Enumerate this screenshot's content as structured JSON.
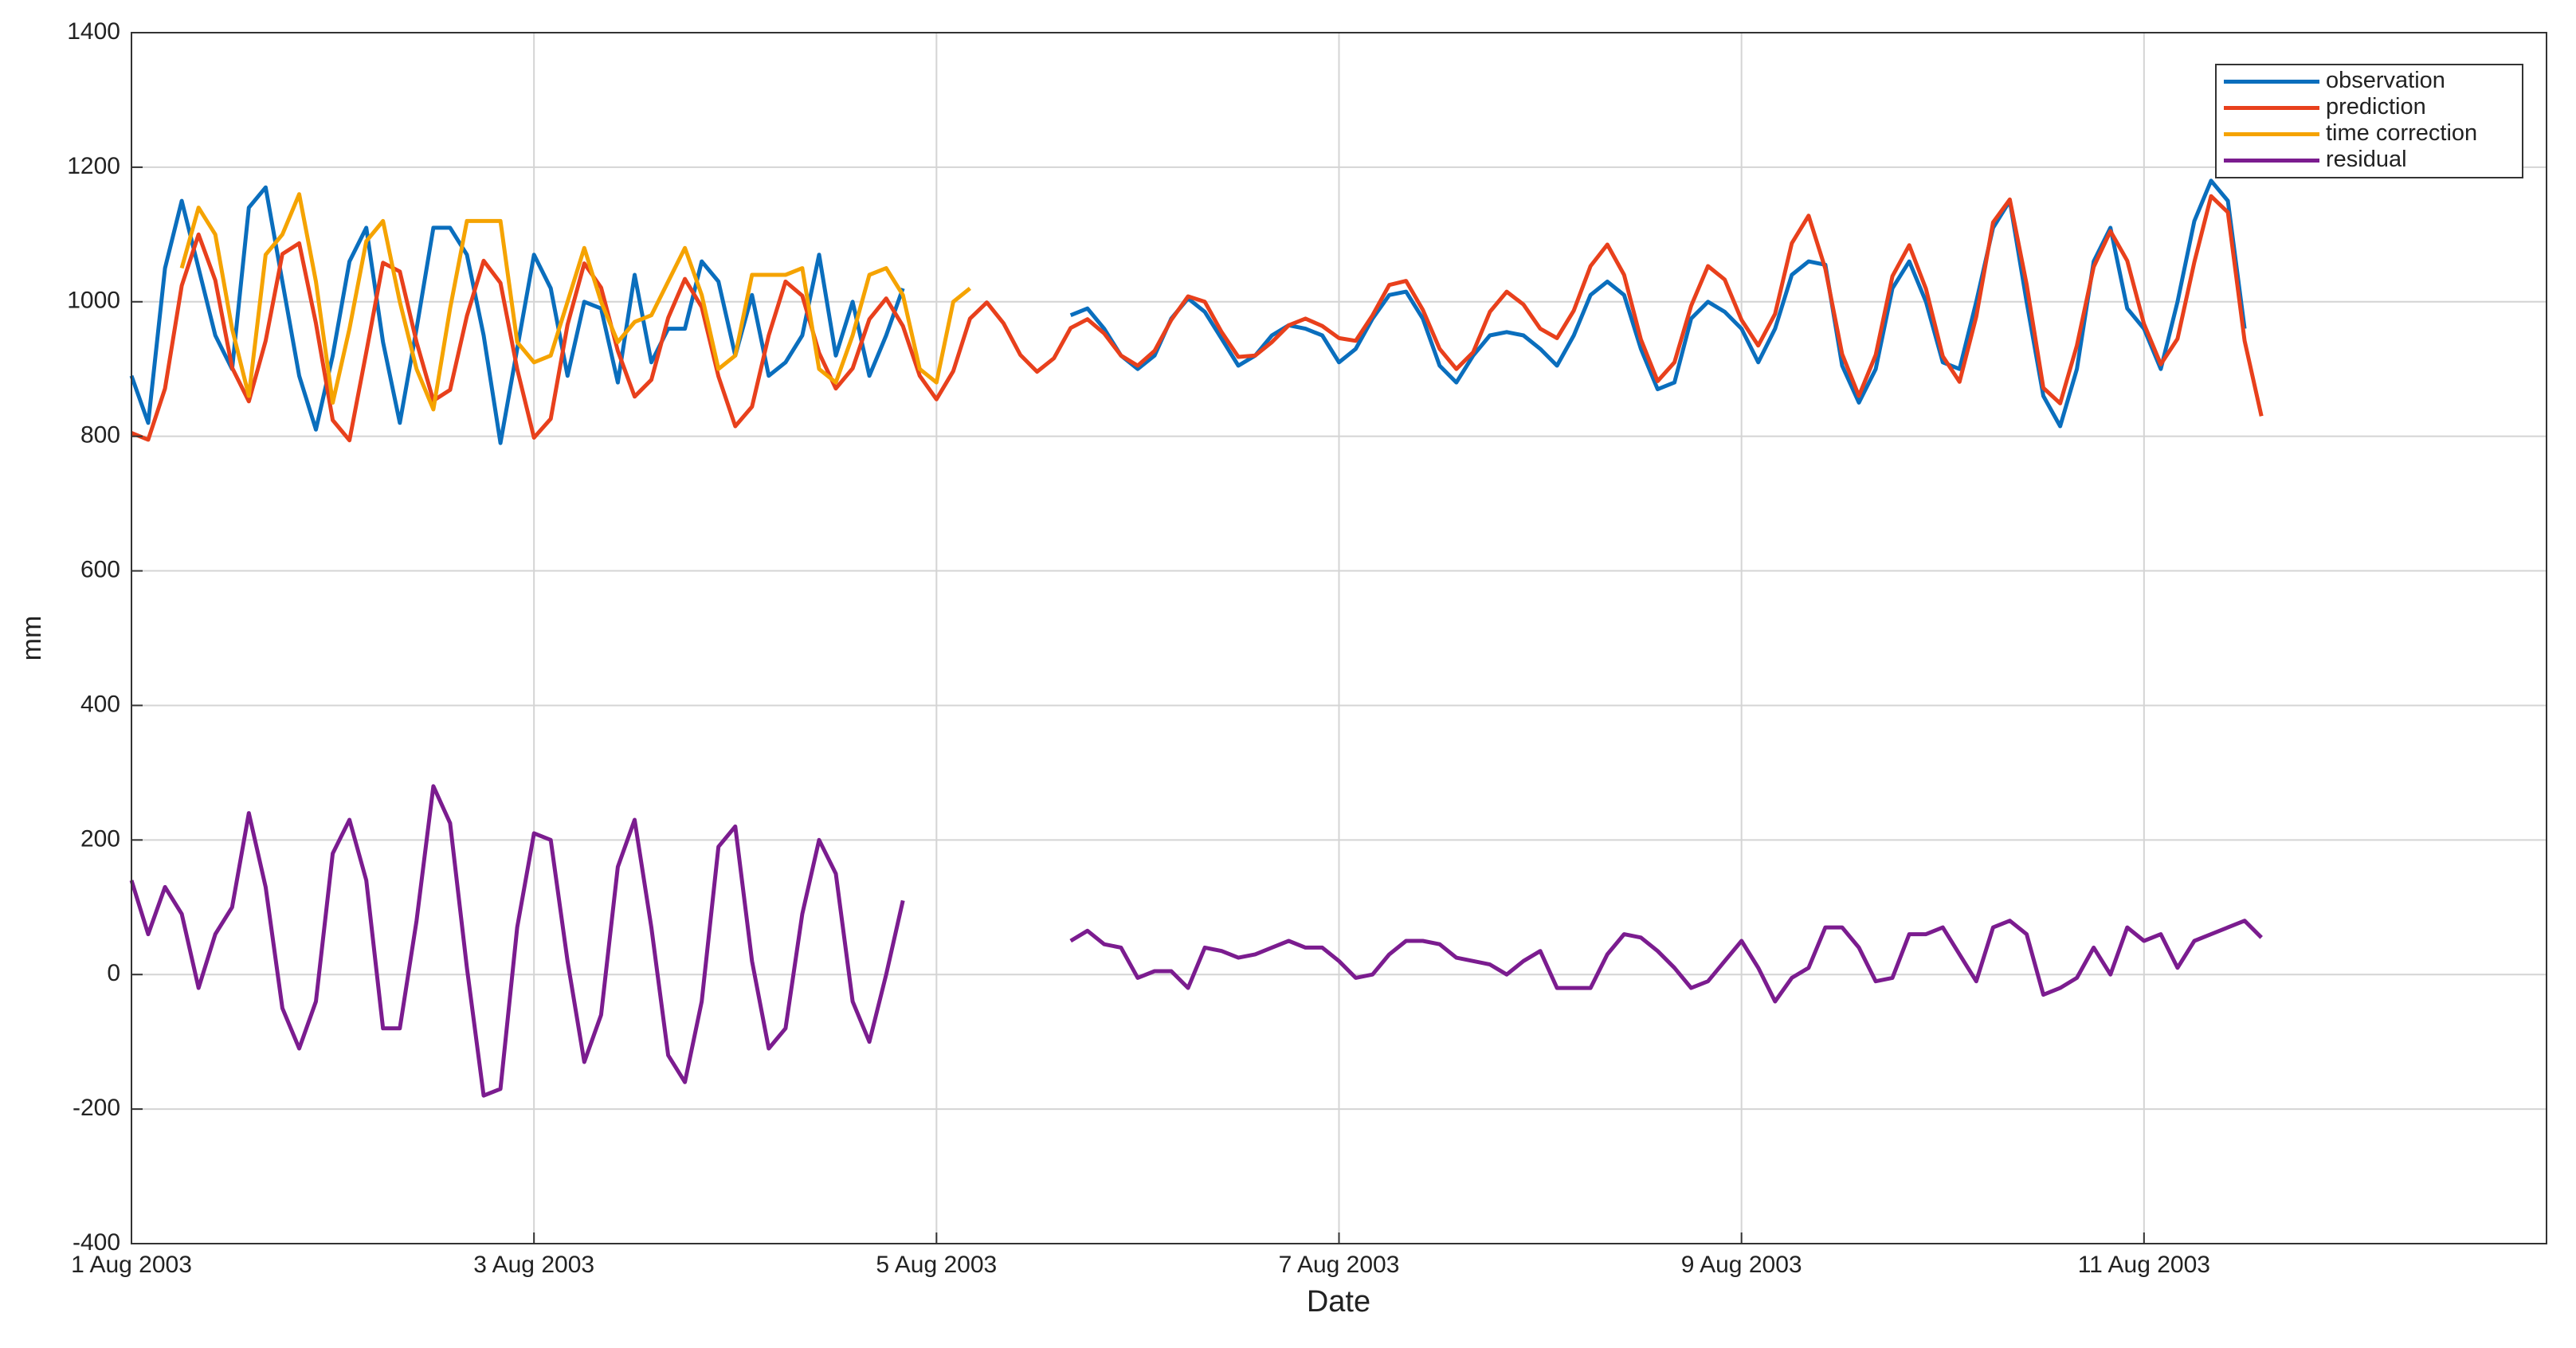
{
  "chart_data": {
    "type": "line",
    "ylabel": "mm",
    "xlabel": "Date",
    "xlim": [
      "2003-08-01T00:00",
      "2003-08-13T00:00"
    ],
    "xticks": [
      {
        "value": "2003-08-01T00:00",
        "label": "1 Aug 2003"
      },
      {
        "value": "2003-08-03T00:00",
        "label": "3 Aug 2003"
      },
      {
        "value": "2003-08-05T00:00",
        "label": "5 Aug 2003"
      },
      {
        "value": "2003-08-07T00:00",
        "label": "7 Aug 2003"
      },
      {
        "value": "2003-08-09T00:00",
        "label": "9 Aug 2003"
      },
      {
        "value": "2003-08-11T00:00",
        "label": "11 Aug 2003"
      }
    ],
    "ylim": [
      -400,
      1400
    ],
    "yticks": [
      -400,
      -200,
      0,
      200,
      400,
      600,
      800,
      1000,
      1200,
      1400
    ],
    "grid": true,
    "legend": "upper right",
    "x": [
      "2003-08-01T00:00",
      "2003-08-01T02:00",
      "2003-08-01T04:00",
      "2003-08-01T06:00",
      "2003-08-01T08:00",
      "2003-08-01T10:00",
      "2003-08-01T12:00",
      "2003-08-01T14:00",
      "2003-08-01T16:00",
      "2003-08-01T18:00",
      "2003-08-01T20:00",
      "2003-08-01T22:00",
      "2003-08-02T00:00",
      "2003-08-02T02:00",
      "2003-08-02T04:00",
      "2003-08-02T06:00",
      "2003-08-02T08:00",
      "2003-08-02T10:00",
      "2003-08-02T12:00",
      "2003-08-02T14:00",
      "2003-08-02T16:00",
      "2003-08-02T18:00",
      "2003-08-02T20:00",
      "2003-08-02T22:00",
      "2003-08-03T00:00",
      "2003-08-03T02:00",
      "2003-08-03T04:00",
      "2003-08-03T06:00",
      "2003-08-03T08:00",
      "2003-08-03T10:00",
      "2003-08-03T12:00",
      "2003-08-03T14:00",
      "2003-08-03T16:00",
      "2003-08-03T18:00",
      "2003-08-03T20:00",
      "2003-08-03T22:00",
      "2003-08-04T00:00",
      "2003-08-04T02:00",
      "2003-08-04T04:00",
      "2003-08-04T06:00",
      "2003-08-04T08:00",
      "2003-08-04T10:00",
      "2003-08-04T12:00",
      "2003-08-04T14:00",
      "2003-08-04T16:00",
      "2003-08-04T18:00",
      "2003-08-04T20:00",
      "2003-08-04T22:00",
      "2003-08-05T00:00",
      "2003-08-05T02:00",
      "2003-08-05T04:00",
      "2003-08-05T06:00",
      "2003-08-05T08:00",
      "2003-08-05T10:00",
      "2003-08-05T12:00",
      "2003-08-05T14:00",
      "2003-08-05T16:00",
      "2003-08-05T18:00",
      "2003-08-05T20:00",
      "2003-08-05T22:00",
      "2003-08-06T00:00",
      "2003-08-06T02:00",
      "2003-08-06T04:00",
      "2003-08-06T06:00",
      "2003-08-06T08:00",
      "2003-08-06T10:00",
      "2003-08-06T12:00",
      "2003-08-06T14:00",
      "2003-08-06T16:00",
      "2003-08-06T18:00",
      "2003-08-06T20:00",
      "2003-08-06T22:00",
      "2003-08-07T00:00",
      "2003-08-07T02:00",
      "2003-08-07T04:00",
      "2003-08-07T06:00",
      "2003-08-07T08:00",
      "2003-08-07T10:00",
      "2003-08-07T12:00",
      "2003-08-07T14:00",
      "2003-08-07T16:00",
      "2003-08-07T18:00",
      "2003-08-07T20:00",
      "2003-08-07T22:00",
      "2003-08-08T00:00",
      "2003-08-08T02:00",
      "2003-08-08T04:00",
      "2003-08-08T06:00",
      "2003-08-08T08:00",
      "2003-08-08T10:00",
      "2003-08-08T12:00",
      "2003-08-08T14:00",
      "2003-08-08T16:00",
      "2003-08-08T18:00",
      "2003-08-08T20:00",
      "2003-08-08T22:00",
      "2003-08-09T00:00",
      "2003-08-09T02:00",
      "2003-08-09T04:00",
      "2003-08-09T06:00",
      "2003-08-09T08:00",
      "2003-08-09T10:00",
      "2003-08-09T12:00",
      "2003-08-09T14:00",
      "2003-08-09T16:00",
      "2003-08-09T18:00",
      "2003-08-09T20:00",
      "2003-08-09T22:00",
      "2003-08-10T00:00",
      "2003-08-10T02:00",
      "2003-08-10T04:00",
      "2003-08-10T06:00",
      "2003-08-10T08:00",
      "2003-08-10T10:00",
      "2003-08-10T12:00",
      "2003-08-10T14:00",
      "2003-08-10T16:00",
      "2003-08-10T18:00",
      "2003-08-10T20:00",
      "2003-08-10T22:00",
      "2003-08-11T00:00",
      "2003-08-11T02:00",
      "2003-08-11T04:00",
      "2003-08-11T06:00",
      "2003-08-11T08:00",
      "2003-08-11T10:00",
      "2003-08-11T12:00",
      "2003-08-11T14:00"
    ],
    "series": [
      {
        "name": "observation",
        "color": "#0a6ebd",
        "values": [
          890,
          820,
          1050,
          1150,
          1050,
          950,
          900,
          1140,
          1170,
          1030,
          890,
          810,
          920,
          1060,
          1110,
          940,
          820,
          960,
          1110,
          1110,
          1070,
          950,
          790,
          930,
          1070,
          1020,
          890,
          1000,
          990,
          880,
          1040,
          910,
          960,
          960,
          1060,
          1030,
          920,
          1010,
          890,
          910,
          950,
          1070,
          920,
          1000,
          890,
          950,
          1020,
          null,
          null,
          null,
          null,
          null,
          null,
          null,
          null,
          null,
          980,
          990,
          960,
          920,
          900,
          920,
          975,
          1005,
          985,
          945,
          905,
          920,
          950,
          965,
          960,
          950,
          910,
          930,
          975,
          1010,
          1015,
          975,
          905,
          880,
          920,
          950,
          955,
          950,
          930,
          905,
          950,
          1010,
          1030,
          1010,
          930,
          870,
          880,
          975,
          1000,
          985,
          960,
          910,
          960,
          1040,
          1060,
          1055,
          905,
          850,
          900,
          1020,
          1060,
          1000,
          910,
          900,
          1000,
          1110,
          1150,
          1000,
          860,
          815,
          900,
          1060,
          1110,
          990,
          960,
          900,
          1000,
          1120,
          1180,
          1150,
          960,
          null
        ]
      },
      {
        "name": "prediction",
        "color": "#e8401c",
        "values": [
          805,
          795,
          871,
          1024,
          1100,
          1032,
          902,
          852,
          942,
          1071,
          1087,
          968,
          824,
          794,
          925,
          1058,
          1045,
          940,
          853,
          869,
          979,
          1061,
          1028,
          900,
          798,
          826,
          966,
          1057,
          1021,
          927,
          859,
          884,
          976,
          1034,
          992,
          889,
          815,
          844,
          950,
          1030,
          1009,
          924,
          871,
          901,
          974,
          1005,
          964,
          890,
          855,
          897,
          975,
          999,
          968,
          921,
          896,
          916,
          961,
          974,
          953,
          920,
          905,
          927,
          973,
          1008,
          1000,
          955,
          918,
          920,
          940,
          965,
          975,
          964,
          946,
          942,
          980,
          1025,
          1031,
          988,
          930,
          900,
          925,
          985,
          1015,
          996,
          960,
          946,
          987,
          1053,
          1085,
          1040,
          944,
          882,
          910,
          994,
          1053,
          1033,
          973,
          935,
          982,
          1087,
          1128,
          1049,
          922,
          860,
          921,
          1038,
          1084,
          1019,
          919,
          881,
          978,
          1118,
          1152,
          1026,
          872,
          849,
          935,
          1052,
          1105,
          1061,
          967,
          907,
          945,
          1059,
          1157,
          1133,
          942,
          830
        ]
      },
      {
        "name": "time correction",
        "color": "#f5a300",
        "values": [
          null,
          null,
          null,
          1050,
          1140,
          1100,
          960,
          860,
          1070,
          1100,
          1160,
          1030,
          850,
          960,
          1090,
          1120,
          1000,
          900,
          840,
          990,
          1120,
          1120,
          1120,
          940,
          910,
          920,
          1000,
          1080,
          1000,
          940,
          970,
          980,
          1030,
          1080,
          1010,
          900,
          920,
          1040,
          1040,
          1040,
          1050,
          900,
          880,
          950,
          1040,
          1050,
          1010,
          900,
          880,
          1000,
          1020,
          null,
          null,
          null,
          null,
          null,
          null,
          null,
          null,
          null,
          null,
          null,
          null,
          null,
          null,
          null,
          null,
          null,
          null,
          null,
          null,
          null,
          null,
          null,
          null,
          null,
          null,
          null,
          null,
          null,
          null,
          null,
          null,
          null,
          null,
          null,
          null,
          null,
          null,
          null,
          null,
          null,
          null,
          null,
          null,
          null,
          null,
          null,
          null,
          null,
          null,
          null,
          null,
          null,
          null,
          null,
          null,
          null,
          null,
          null,
          null,
          null,
          null,
          null,
          null,
          null,
          null,
          null,
          null,
          null,
          null,
          null,
          null,
          null,
          null,
          null,
          null,
          null
        ]
      },
      {
        "name": "residual",
        "color": "#7b1c8f",
        "values": [
          140,
          60,
          130,
          90,
          -20,
          60,
          100,
          240,
          130,
          -50,
          -110,
          -40,
          180,
          230,
          140,
          -80,
          -80,
          80,
          280,
          225,
          10,
          -180,
          -170,
          70,
          210,
          200,
          20,
          -130,
          -60,
          160,
          230,
          70,
          -120,
          -160,
          -40,
          190,
          220,
          20,
          -110,
          -80,
          90,
          200,
          150,
          -40,
          -100,
          0,
          110,
          null,
          null,
          null,
          null,
          null,
          null,
          null,
          null,
          null,
          50,
          65,
          45,
          40,
          -5,
          5,
          5,
          -20,
          40,
          35,
          25,
          30,
          40,
          50,
          40,
          40,
          20,
          -5,
          0,
          30,
          50,
          50,
          45,
          25,
          20,
          15,
          0,
          20,
          35,
          -20,
          -20,
          -20,
          30,
          60,
          55,
          35,
          10,
          -20,
          -10,
          20,
          50,
          10,
          -40,
          -5,
          10,
          70,
          70,
          40,
          -10,
          -5,
          60,
          60,
          70,
          30,
          -10,
          70,
          80,
          60,
          -30,
          -20,
          -5,
          40,
          0,
          70,
          50,
          60,
          10,
          50,
          60,
          70,
          80,
          55
        ]
      }
    ]
  }
}
